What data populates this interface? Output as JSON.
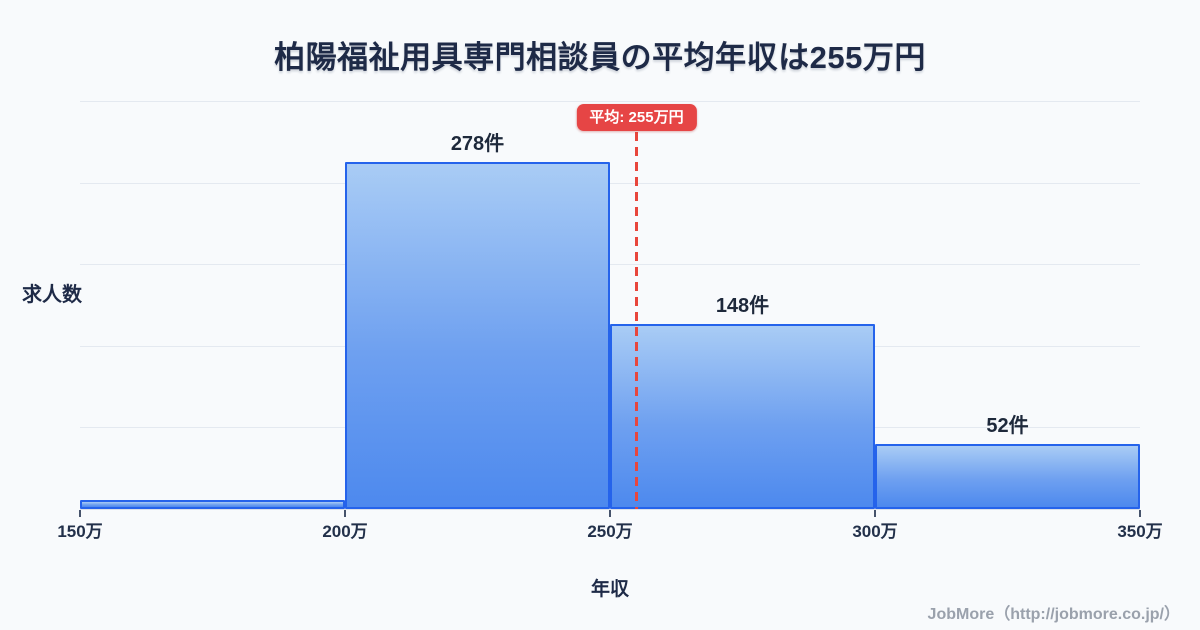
{
  "title": "柏陽福祉用具専門相談員の平均年収は255万円",
  "chart_data": {
    "type": "bar",
    "subtype": "histogram",
    "title": "柏陽福祉用具専門相談員の平均年収は255万円",
    "xlabel": "年収",
    "ylabel": "求人数",
    "x_ticks": [
      "150万",
      "200万",
      "250万",
      "300万",
      "350万"
    ],
    "bin_edges": [
      150,
      200,
      250,
      300,
      350
    ],
    "values": [
      7,
      278,
      148,
      52
    ],
    "bar_labels": [
      "",
      "278件",
      "148件",
      "52件"
    ],
    "unit": "件",
    "average_line": {
      "x": 255,
      "label": "平均: 255万円"
    },
    "xlim": [
      150,
      350
    ],
    "ylim": [
      0,
      327
    ],
    "grid": true,
    "legend": false
  },
  "footer": {
    "credit": "JobMore（http://jobmore.co.jp/）"
  },
  "colors": {
    "background": "#f8fafc",
    "bar_fill_top": "#a9ccf5",
    "bar_fill_bottom": "#4d89ee",
    "bar_border": "#2563eb",
    "average_line": "#e8463c",
    "badge_background": "#e64545",
    "badge_text": "#ffffff",
    "title_text": "#1e2a47",
    "axis_text": "#22304a",
    "grid_line": "#e4e9f0",
    "footer_text": "#9aa1ac"
  }
}
